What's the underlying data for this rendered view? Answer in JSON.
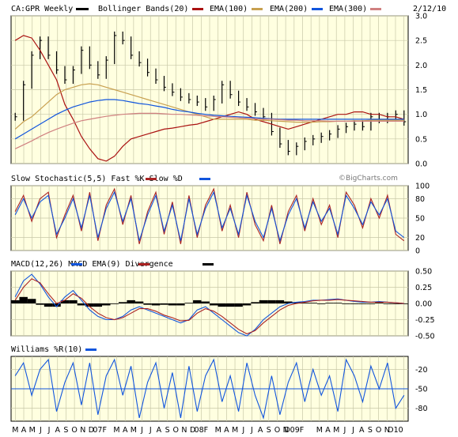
{
  "header": {
    "symbol": "CA:GPR Weekly",
    "date": "2/12/10",
    "legend": [
      {
        "label": "Bollinger Bands(20)",
        "color": "#aa1111"
      },
      {
        "label": "EMA(100)",
        "color": "#c8a050"
      },
      {
        "label": "EMA(200)",
        "color": "#1155dd"
      },
      {
        "label": "EMA(300)",
        "color": "#d08080"
      }
    ],
    "symbol_swatch": "#000000"
  },
  "watermark": "©BigCharts.com",
  "colors": {
    "plot_bg": "#ffffe0",
    "grid": "#c8c8a8",
    "border": "#000000",
    "fast": "#aa2222",
    "slow": "#1155dd",
    "macd": "#1155dd",
    "macd_ema": "#aa2222",
    "divergence": "#000000",
    "williams": "#1155dd",
    "ref_line": "#1155dd"
  },
  "x_axis": {
    "labels": [
      "M",
      "A",
      "M",
      "J",
      "J",
      "A",
      "S",
      "O",
      "N",
      "D",
      "07",
      "F",
      "M",
      "A",
      "M",
      "J",
      "J",
      "A",
      "S",
      "O",
      "N",
      "D",
      "08",
      "F",
      "M",
      "A",
      "M",
      "J",
      "J",
      "A",
      "S",
      "O",
      "N",
      "D",
      "09",
      "F",
      "M",
      "A",
      "M",
      "J",
      "J",
      "A",
      "S",
      "O",
      "N",
      "D",
      "10"
    ],
    "label_text": [
      "M",
      "A",
      "M",
      "J",
      "J",
      "A",
      "S",
      "O",
      "N",
      "D",
      "07F",
      "",
      "M",
      "A",
      "M",
      "J",
      "J",
      "A",
      "S",
      "O",
      "N",
      "D",
      "08F",
      "",
      "M",
      "A",
      "M",
      "J",
      "J",
      "A",
      "S",
      "O",
      "N",
      "D09F",
      "",
      "",
      "M",
      "A",
      "M",
      "J",
      "J",
      "A",
      "S",
      "O",
      "N",
      "D10",
      ""
    ]
  },
  "chart_data": [
    {
      "panel": "price",
      "type": "candlestick",
      "title": "CA:GPR Weekly",
      "ylim": [
        0.0,
        3.0
      ],
      "y_ticks": [
        "3.0",
        "2.5",
        "2.0",
        "1.5",
        "1.0",
        "0.5",
        "0.0"
      ],
      "series": [
        {
          "name": "CA:GPR Weekly",
          "values": [
            0.95,
            1.6,
            2.2,
            2.5,
            2.2,
            1.9,
            1.7,
            1.9,
            2.3,
            2.0,
            1.8,
            2.1,
            2.6,
            2.5,
            2.2,
            2.05,
            1.85,
            1.7,
            1.55,
            1.45,
            1.35,
            1.3,
            1.25,
            1.15,
            1.3,
            1.6,
            1.4,
            1.25,
            1.15,
            1.05,
            0.95,
            0.65,
            0.4,
            0.25,
            0.35,
            0.45,
            0.5,
            0.55,
            0.6,
            0.7,
            0.75,
            0.8,
            0.75,
            0.95,
            0.9,
            0.95,
            1.0,
            0.85
          ]
        },
        {
          "name": "Bollinger Bands(20)",
          "values": [
            2.5,
            2.6,
            2.55,
            2.3,
            2.0,
            1.7,
            1.2,
            0.9,
            0.55,
            0.3,
            0.1,
            0.05,
            0.15,
            0.35,
            0.5,
            0.55,
            0.6,
            0.65,
            0.7,
            0.72,
            0.75,
            0.78,
            0.8,
            0.85,
            0.9,
            0.95,
            1.0,
            1.05,
            1.0,
            0.9,
            0.85,
            0.8,
            0.75,
            0.7,
            0.75,
            0.8,
            0.85,
            0.9,
            0.95,
            1.0,
            1.0,
            1.05,
            1.05,
            1.0,
            1.0,
            0.95,
            0.95,
            0.9
          ]
        },
        {
          "name": "EMA(100)",
          "values": [
            0.7,
            0.85,
            0.95,
            1.1,
            1.25,
            1.4,
            1.5,
            1.55,
            1.6,
            1.62,
            1.6,
            1.55,
            1.5,
            1.45,
            1.4,
            1.35,
            1.3,
            1.25,
            1.2,
            1.15,
            1.1,
            1.05,
            1.0,
            0.95,
            0.9,
            0.9,
            0.9,
            0.9,
            0.9,
            0.88,
            0.88,
            0.87,
            0.86,
            0.85,
            0.84,
            0.84,
            0.84,
            0.85,
            0.85,
            0.86,
            0.86,
            0.87,
            0.87,
            0.88,
            0.88,
            0.88,
            0.88,
            0.88
          ]
        },
        {
          "name": "EMA(200)",
          "values": [
            0.5,
            0.6,
            0.7,
            0.8,
            0.9,
            1.0,
            1.08,
            1.15,
            1.2,
            1.25,
            1.28,
            1.3,
            1.3,
            1.28,
            1.25,
            1.22,
            1.2,
            1.17,
            1.14,
            1.1,
            1.07,
            1.05,
            1.02,
            1.0,
            0.98,
            0.97,
            0.96,
            0.95,
            0.94,
            0.93,
            0.92,
            0.91,
            0.9,
            0.9,
            0.9,
            0.9,
            0.9,
            0.9,
            0.9,
            0.9,
            0.9,
            0.9,
            0.9,
            0.9,
            0.9,
            0.9,
            0.9,
            0.9
          ]
        },
        {
          "name": "EMA(300)",
          "values": [
            0.3,
            0.38,
            0.46,
            0.55,
            0.63,
            0.7,
            0.76,
            0.82,
            0.87,
            0.9,
            0.93,
            0.96,
            0.98,
            1.0,
            1.01,
            1.02,
            1.02,
            1.02,
            1.01,
            1.0,
            1.0,
            0.99,
            0.98,
            0.97,
            0.96,
            0.95,
            0.94,
            0.93,
            0.92,
            0.91,
            0.9,
            0.9,
            0.89,
            0.88,
            0.88,
            0.87,
            0.87,
            0.87,
            0.86,
            0.86,
            0.86,
            0.86,
            0.86,
            0.86,
            0.86,
            0.86,
            0.86,
            0.86
          ]
        }
      ]
    },
    {
      "panel": "stochastic",
      "type": "line",
      "title": "Slow Stochastic(5,5) Fast %K  Slow %D",
      "ylim": [
        0,
        100
      ],
      "y_ticks": [
        "100",
        "80",
        "50",
        "20",
        "0"
      ],
      "series": [
        {
          "name": "Fast %K",
          "values": [
            60,
            85,
            45,
            80,
            90,
            20,
            55,
            85,
            30,
            90,
            15,
            70,
            95,
            40,
            85,
            10,
            60,
            90,
            25,
            75,
            10,
            85,
            20,
            70,
            95,
            30,
            70,
            20,
            90,
            40,
            15,
            70,
            10,
            60,
            85,
            30,
            80,
            40,
            70,
            20,
            90,
            70,
            35,
            80,
            50,
            85,
            25,
            15
          ]
        },
        {
          "name": "Slow %D",
          "values": [
            55,
            80,
            50,
            75,
            85,
            25,
            50,
            80,
            35,
            85,
            20,
            65,
            90,
            45,
            80,
            15,
            55,
            85,
            30,
            70,
            15,
            80,
            25,
            65,
            90,
            35,
            65,
            25,
            85,
            45,
            20,
            65,
            15,
            55,
            80,
            35,
            75,
            45,
            65,
            25,
            85,
            65,
            40,
            75,
            55,
            80,
            30,
            20
          ]
        }
      ]
    },
    {
      "panel": "macd",
      "type": "line",
      "title": "MACD(12,26)  MACD EMA(9)  Divergence",
      "ylim": [
        -0.5,
        0.5
      ],
      "y_ticks": [
        "0.50",
        "0.25",
        "0.00",
        "-0.25",
        "-0.50"
      ],
      "series": [
        {
          "name": "MACD(12,26)",
          "values": [
            0.1,
            0.35,
            0.45,
            0.3,
            0.1,
            -0.05,
            0.1,
            0.2,
            0.05,
            -0.1,
            -0.2,
            -0.25,
            -0.25,
            -0.2,
            -0.1,
            -0.05,
            -0.1,
            -0.15,
            -0.2,
            -0.25,
            -0.3,
            -0.25,
            -0.1,
            -0.05,
            -0.15,
            -0.25,
            -0.35,
            -0.45,
            -0.5,
            -0.4,
            -0.25,
            -0.15,
            -0.05,
            0.0,
            0.02,
            0.03,
            0.05,
            0.05,
            0.06,
            0.07,
            0.05,
            0.03,
            0.02,
            0.02,
            0.03,
            0.02,
            0.01,
            0.0
          ]
        },
        {
          "name": "MACD EMA(9)",
          "values": [
            0.05,
            0.25,
            0.38,
            0.32,
            0.15,
            0.0,
            0.05,
            0.15,
            0.08,
            -0.05,
            -0.15,
            -0.22,
            -0.25,
            -0.22,
            -0.15,
            -0.08,
            -0.08,
            -0.12,
            -0.18,
            -0.22,
            -0.27,
            -0.26,
            -0.15,
            -0.08,
            -0.12,
            -0.2,
            -0.3,
            -0.4,
            -0.47,
            -0.42,
            -0.3,
            -0.2,
            -0.1,
            -0.03,
            0.0,
            0.02,
            0.04,
            0.05,
            0.05,
            0.06,
            0.05,
            0.04,
            0.03,
            0.02,
            0.02,
            0.02,
            0.01,
            0.0
          ]
        },
        {
          "name": "Divergence",
          "values": [
            0.05,
            0.1,
            0.07,
            -0.02,
            -0.05,
            -0.05,
            0.05,
            0.05,
            -0.03,
            -0.05,
            -0.05,
            -0.03,
            0.0,
            0.02,
            0.05,
            0.03,
            -0.02,
            -0.03,
            -0.02,
            -0.03,
            -0.03,
            0.01,
            0.05,
            0.03,
            -0.03,
            -0.05,
            -0.05,
            -0.05,
            -0.03,
            0.02,
            0.05,
            0.05,
            0.05,
            0.03,
            0.02,
            0.01,
            0.01,
            0.0,
            0.01,
            0.01,
            0.0,
            -0.01,
            -0.01,
            0.0,
            0.01,
            0.0,
            0.0,
            0.0
          ]
        }
      ]
    },
    {
      "panel": "williams",
      "type": "line",
      "title": "Williams %R(10)",
      "ylim": [
        -100,
        0
      ],
      "y_ticks": [
        "-20",
        "-50",
        "-80"
      ],
      "series": [
        {
          "name": "Williams %R(10)",
          "values": [
            -30,
            -10,
            -60,
            -20,
            -5,
            -85,
            -40,
            -10,
            -75,
            -10,
            -90,
            -30,
            -5,
            -60,
            -15,
            -95,
            -40,
            -10,
            -80,
            -25,
            -95,
            -15,
            -85,
            -30,
            -5,
            -70,
            -30,
            -85,
            -10,
            -60,
            -95,
            -30,
            -90,
            -40,
            -10,
            -70,
            -20,
            -60,
            -30,
            -85,
            -5,
            -30,
            -70,
            -15,
            -50,
            -10,
            -80,
            -60
          ]
        }
      ]
    }
  ]
}
